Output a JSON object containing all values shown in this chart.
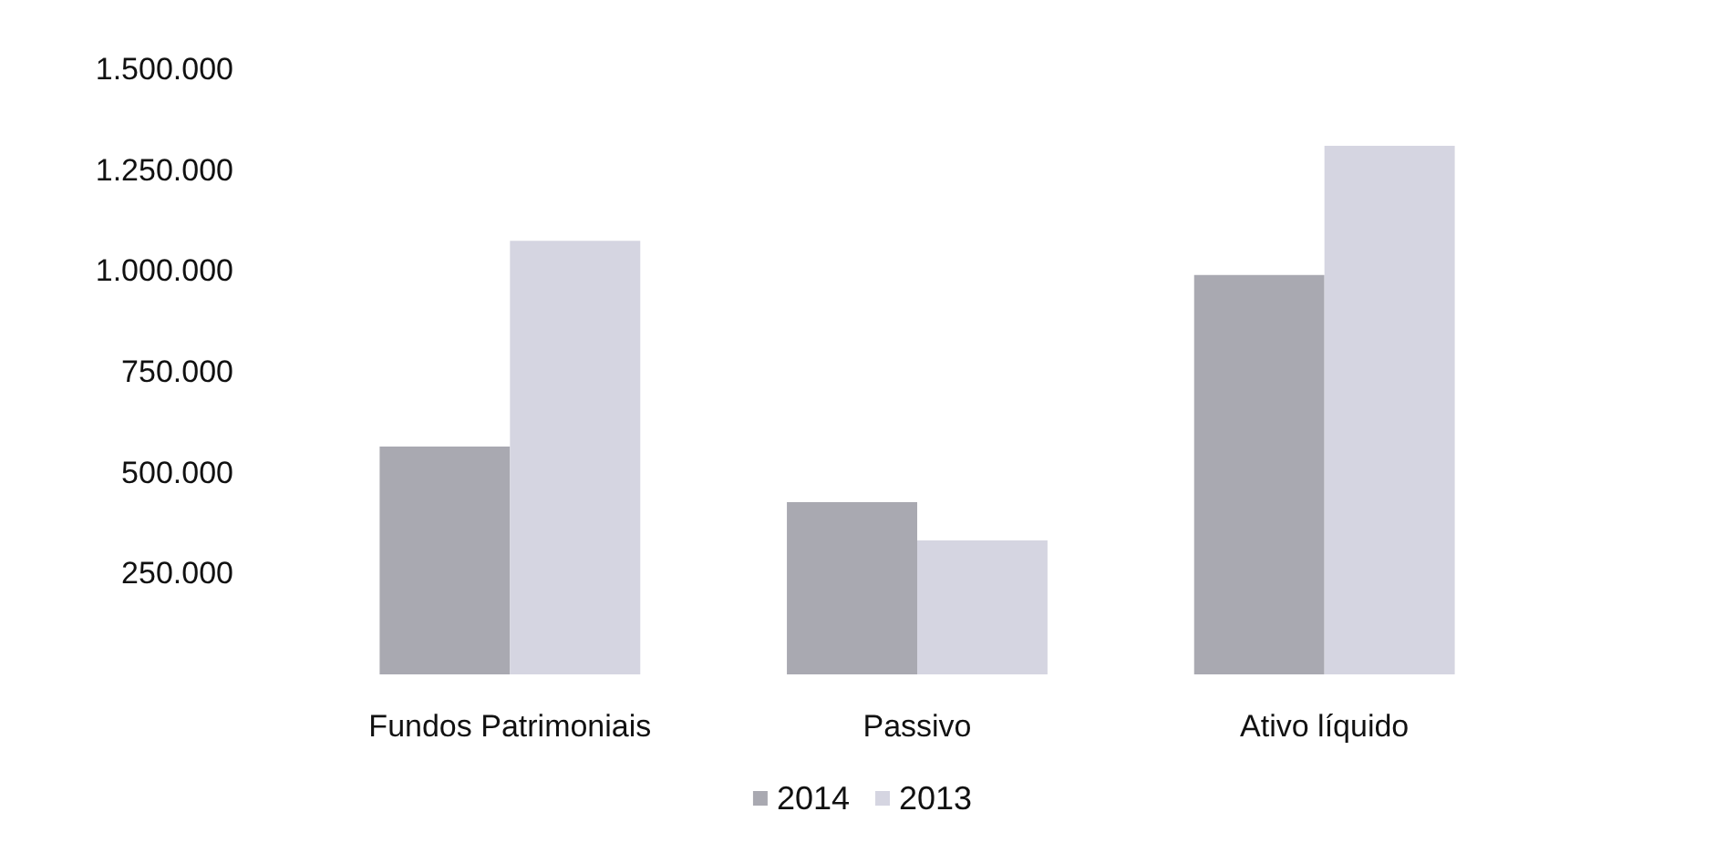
{
  "chart_data": {
    "type": "bar",
    "categories": [
      "Fundos Patrimoniais",
      "Passivo",
      "Ativo líquido"
    ],
    "series": [
      {
        "name": "2014",
        "color": "#a9a9b1",
        "values": [
          565000,
          427000,
          990000
        ]
      },
      {
        "name": "2013",
        "color": "#d5d5e1",
        "values": [
          1075000,
          332000,
          1310000
        ]
      }
    ],
    "ylim": [
      0,
      1500000
    ],
    "yticks": [
      {
        "value": 250000,
        "label": "250.000"
      },
      {
        "value": 500000,
        "label": "500.000"
      },
      {
        "value": 750000,
        "label": "750.000"
      },
      {
        "value": 1000000,
        "label": "1.000.000"
      },
      {
        "value": 1250000,
        "label": "1.250.000"
      },
      {
        "value": 1500000,
        "label": "1.500.000"
      }
    ],
    "grid": false,
    "legend": "bottom"
  }
}
